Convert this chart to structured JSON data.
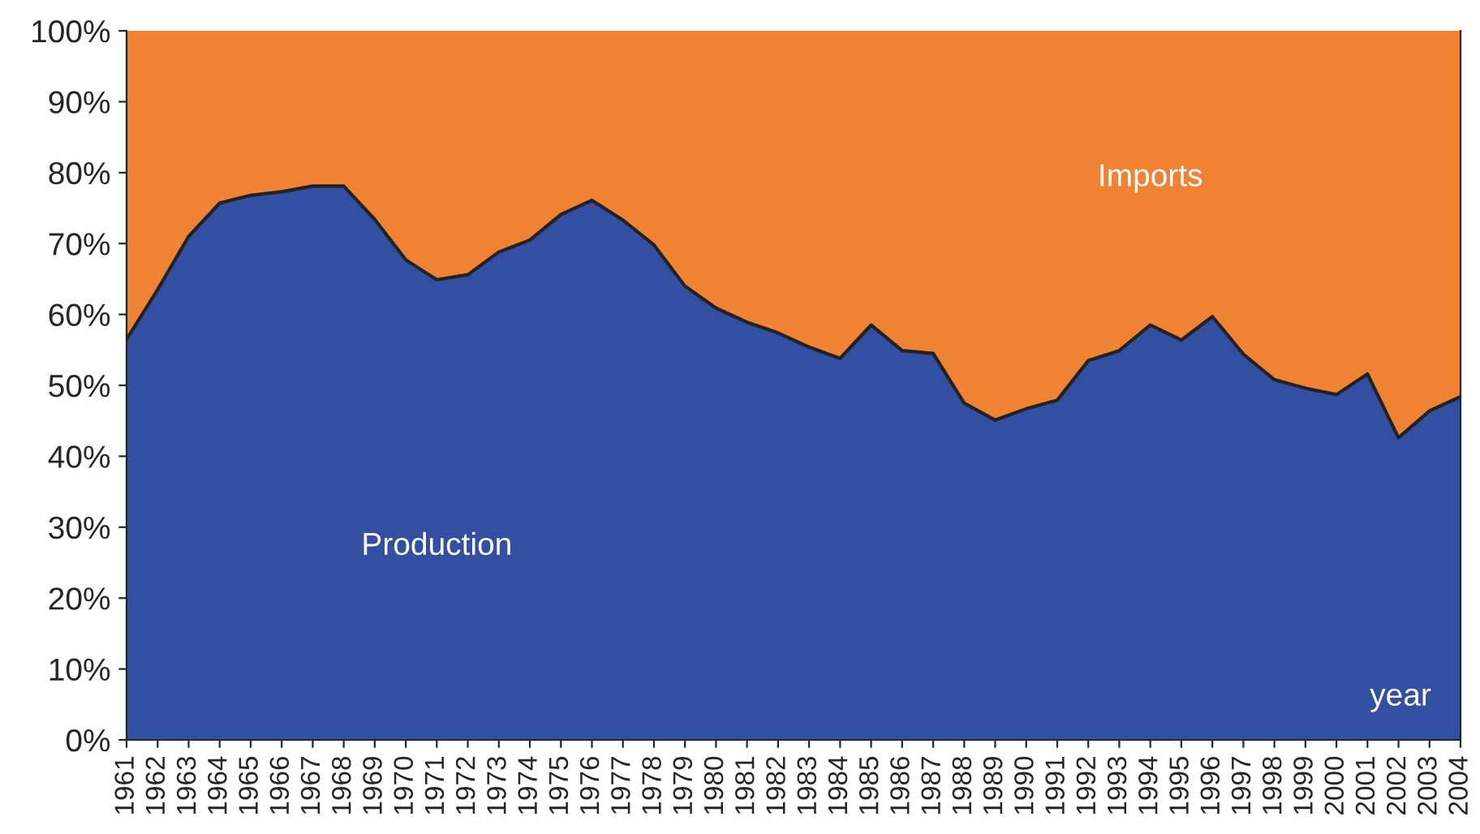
{
  "chart_data": {
    "type": "area",
    "stacked": true,
    "xlabel": "year",
    "categories": [
      "1961",
      "1962",
      "1963",
      "1964",
      "1965",
      "1966",
      "1967",
      "1968",
      "1969",
      "1970",
      "1971",
      "1972",
      "1973",
      "1974",
      "1975",
      "1976",
      "1977",
      "1978",
      "1979",
      "1980",
      "1981",
      "1982",
      "1983",
      "1984",
      "1985",
      "1986",
      "1987",
      "1988",
      "1989",
      "1990",
      "1991",
      "1992",
      "1993",
      "1994",
      "1995",
      "1996",
      "1997",
      "1998",
      "1999",
      "2000",
      "2001",
      "2002",
      "2003",
      "2004"
    ],
    "series": [
      {
        "name": "Production",
        "color": "#324fa1",
        "values": [
          56.5,
          63.5,
          71,
          75.7,
          76.8,
          77.3,
          78.1,
          78.1,
          73.4,
          67.7,
          64.9,
          65.6,
          68.8,
          70.5,
          74.1,
          76.1,
          73.3,
          69.8,
          64,
          60.9,
          58.9,
          57.4,
          55.4,
          53.8,
          58.5,
          54.9,
          54.5,
          47.5,
          45.1,
          46.7,
          47.9,
          53.5,
          54.9,
          58.5,
          56.4,
          59.7,
          54.4,
          50.8,
          49.6,
          48.7,
          51.6,
          42.6,
          46.4,
          48.4
        ]
      },
      {
        "name": "Imports",
        "color": "#f08234",
        "values": [
          43.5,
          36.5,
          29,
          24.3,
          23.2,
          22.7,
          21.9,
          21.9,
          26.6,
          32.3,
          35.1,
          34.4,
          31.2,
          29.5,
          25.9,
          23.9,
          26.7,
          30.2,
          36,
          39.1,
          41.1,
          42.6,
          44.6,
          46.2,
          41.5,
          45.1,
          45.5,
          52.5,
          54.9,
          53.3,
          52.1,
          46.5,
          45.1,
          41.5,
          43.6,
          40.3,
          45.6,
          49.2,
          50.4,
          51.3,
          48.4,
          57.4,
          53.6,
          51.6
        ]
      }
    ],
    "ylim": [
      0,
      100
    ],
    "yticks": [
      {
        "value": 0,
        "label": "0%"
      },
      {
        "value": 10,
        "label": "10%"
      },
      {
        "value": 20,
        "label": "20%"
      },
      {
        "value": 30,
        "label": "30%"
      },
      {
        "value": 40,
        "label": "40%"
      },
      {
        "value": 50,
        "label": "50%"
      },
      {
        "value": 60,
        "label": "60%"
      },
      {
        "value": 70,
        "label": "70%"
      },
      {
        "value": 80,
        "label": "80%"
      },
      {
        "value": 90,
        "label": "90%"
      },
      {
        "value": 100,
        "label": "100%"
      }
    ],
    "legend": false
  }
}
